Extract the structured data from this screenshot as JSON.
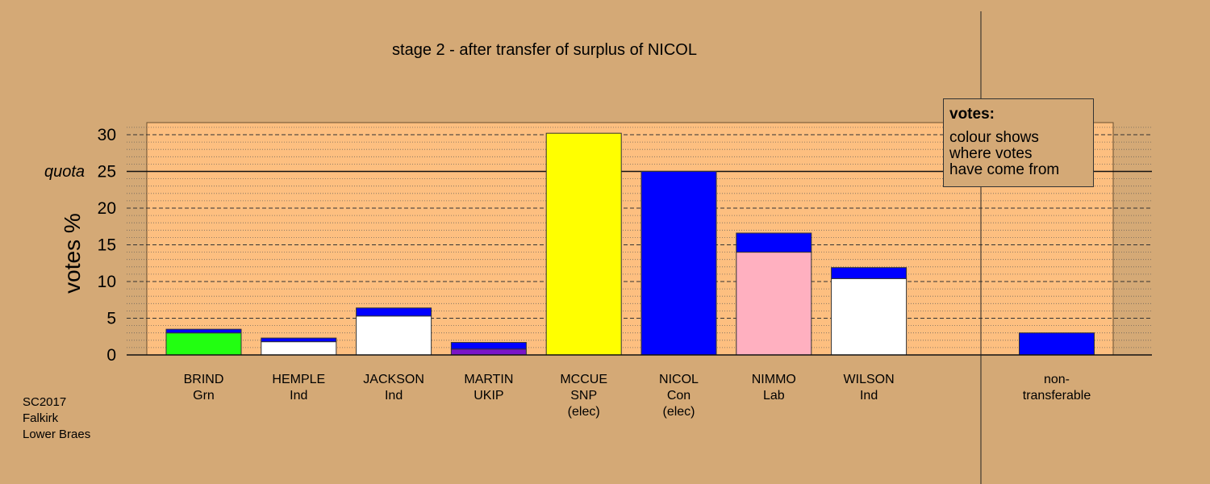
{
  "title": "stage 2 - after transfer of surplus of NICOL",
  "footer": {
    "line1": "SC2017",
    "line2": "Falkirk",
    "line3": "Lower Braes"
  },
  "legend": {
    "title": "votes:",
    "body": "colour shows\nwhere votes\nhave come from"
  },
  "chart_data": {
    "type": "bar",
    "title": "stage 2 - after transfer of surplus of NICOL",
    "ylabel": "votes %",
    "ylim": [
      0,
      32
    ],
    "yticks": [
      0,
      5,
      10,
      15,
      20,
      25,
      30
    ],
    "quota_label": "quota",
    "quota": 25,
    "grid": true,
    "legend_position": "top-right",
    "candidates": [
      {
        "name": "BRIND",
        "party": "Grn",
        "note": "",
        "own": 3.0,
        "own_color": "#22ff11",
        "transfer": 0.5
      },
      {
        "name": "HEMPLE",
        "party": "Ind",
        "note": "",
        "own": 1.8,
        "own_color": "#ffffff",
        "transfer": 0.5
      },
      {
        "name": "JACKSON",
        "party": "Ind",
        "note": "",
        "own": 5.3,
        "own_color": "#ffffff",
        "transfer": 1.1
      },
      {
        "name": "MARTIN",
        "party": "UKIP",
        "note": "",
        "own": 0.8,
        "own_color": "#7a14c8",
        "transfer": 0.9
      },
      {
        "name": "MCCUE",
        "party": "SNP",
        "note": "(elec)",
        "own": 30.2,
        "own_color": "#ffff00",
        "transfer": 0
      },
      {
        "name": "NICOL",
        "party": "Con",
        "note": "(elec)",
        "own": 25.0,
        "own_color": "#0000ff",
        "transfer": 0
      },
      {
        "name": "NIMMO",
        "party": "Lab",
        "note": "",
        "own": 14.0,
        "own_color": "#ffb0c0",
        "transfer": 2.6
      },
      {
        "name": "WILSON",
        "party": "Ind",
        "note": "",
        "own": 10.4,
        "own_color": "#ffffff",
        "transfer": 1.5
      }
    ],
    "non_transferable": {
      "label1": "non-",
      "label2": "transferable",
      "value": 3.0,
      "color": "#0000ff"
    },
    "transfer_color": "#0000ff"
  }
}
